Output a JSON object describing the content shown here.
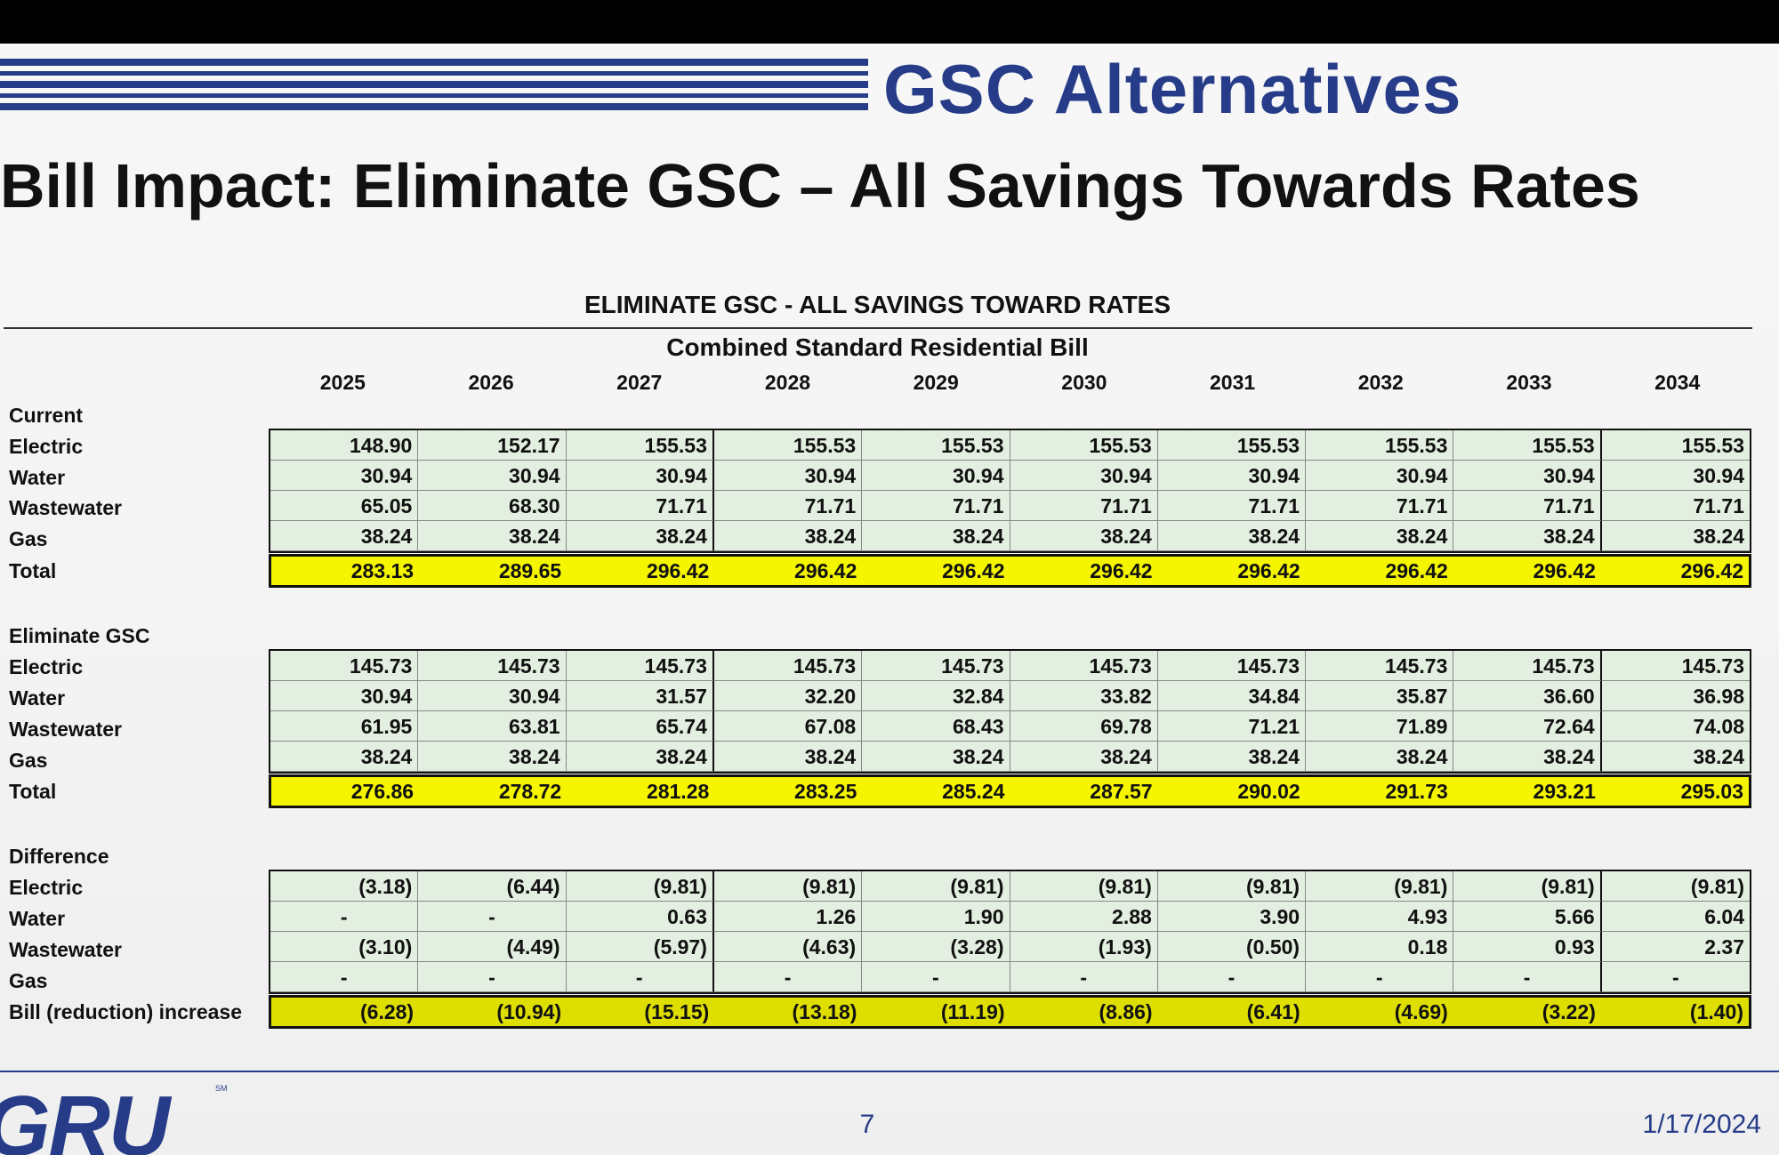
{
  "header": {
    "section_title": "GSC Alternatives",
    "page_title": "Bill Impact: Eliminate GSC – All Savings Towards Rates"
  },
  "table": {
    "title": "ELIMINATE GSC - ALL SAVINGS TOWARD RATES",
    "subtitle": "Combined Standard Residential Bill",
    "years": [
      "2025",
      "2026",
      "2027",
      "2028",
      "2029",
      "2030",
      "2031",
      "2032",
      "2033",
      "2034"
    ],
    "current": {
      "label": "Current",
      "rows": [
        {
          "label": "Electric",
          "values": [
            "148.90",
            "152.17",
            "155.53",
            "155.53",
            "155.53",
            "155.53",
            "155.53",
            "155.53",
            "155.53",
            "155.53"
          ]
        },
        {
          "label": "Water",
          "values": [
            "30.94",
            "30.94",
            "30.94",
            "30.94",
            "30.94",
            "30.94",
            "30.94",
            "30.94",
            "30.94",
            "30.94"
          ]
        },
        {
          "label": "Wastewater",
          "values": [
            "65.05",
            "68.30",
            "71.71",
            "71.71",
            "71.71",
            "71.71",
            "71.71",
            "71.71",
            "71.71",
            "71.71"
          ]
        },
        {
          "label": "Gas",
          "values": [
            "38.24",
            "38.24",
            "38.24",
            "38.24",
            "38.24",
            "38.24",
            "38.24",
            "38.24",
            "38.24",
            "38.24"
          ]
        }
      ],
      "total": {
        "label": "Total",
        "values": [
          "283.13",
          "289.65",
          "296.42",
          "296.42",
          "296.42",
          "296.42",
          "296.42",
          "296.42",
          "296.42",
          "296.42"
        ]
      }
    },
    "eliminate": {
      "label": "Eliminate GSC",
      "rows": [
        {
          "label": "Electric",
          "values": [
            "145.73",
            "145.73",
            "145.73",
            "145.73",
            "145.73",
            "145.73",
            "145.73",
            "145.73",
            "145.73",
            "145.73"
          ]
        },
        {
          "label": "Water",
          "values": [
            "30.94",
            "30.94",
            "31.57",
            "32.20",
            "32.84",
            "33.82",
            "34.84",
            "35.87",
            "36.60",
            "36.98"
          ]
        },
        {
          "label": "Wastewater",
          "values": [
            "61.95",
            "63.81",
            "65.74",
            "67.08",
            "68.43",
            "69.78",
            "71.21",
            "71.89",
            "72.64",
            "74.08"
          ]
        },
        {
          "label": "Gas",
          "values": [
            "38.24",
            "38.24",
            "38.24",
            "38.24",
            "38.24",
            "38.24",
            "38.24",
            "38.24",
            "38.24",
            "38.24"
          ]
        }
      ],
      "total": {
        "label": "Total",
        "values": [
          "276.86",
          "278.72",
          "281.28",
          "283.25",
          "285.24",
          "287.57",
          "290.02",
          "291.73",
          "293.21",
          "295.03"
        ]
      }
    },
    "difference": {
      "label": "Difference",
      "rows": [
        {
          "label": "Electric",
          "values": [
            "(3.18)",
            "(6.44)",
            "(9.81)",
            "(9.81)",
            "(9.81)",
            "(9.81)",
            "(9.81)",
            "(9.81)",
            "(9.81)",
            "(9.81)"
          ]
        },
        {
          "label": "Water",
          "values": [
            "-",
            "-",
            "0.63",
            "1.26",
            "1.90",
            "2.88",
            "3.90",
            "4.93",
            "5.66",
            "6.04"
          ]
        },
        {
          "label": "Wastewater",
          "values": [
            "(3.10)",
            "(4.49)",
            "(5.97)",
            "(4.63)",
            "(3.28)",
            "(1.93)",
            "(0.50)",
            "0.18",
            "0.93",
            "2.37"
          ]
        },
        {
          "label": "Gas",
          "values": [
            "-",
            "-",
            "-",
            "-",
            "-",
            "-",
            "-",
            "-",
            "-",
            "-"
          ]
        }
      ],
      "total": {
        "label": "Bill (reduction) increase",
        "values": [
          "(6.28)",
          "(10.94)",
          "(15.15)",
          "(13.18)",
          "(11.19)",
          "(8.86)",
          "(6.41)",
          "(4.69)",
          "(3.22)",
          "(1.40)"
        ]
      }
    }
  },
  "footer": {
    "logo": "GRU",
    "logo_mark": "SM",
    "page_number": "7",
    "date": "1/17/2024"
  },
  "colors": {
    "brand_blue": "#263c88",
    "total_highlight": "#f5f500",
    "cell_fill": "#e3efe0"
  }
}
